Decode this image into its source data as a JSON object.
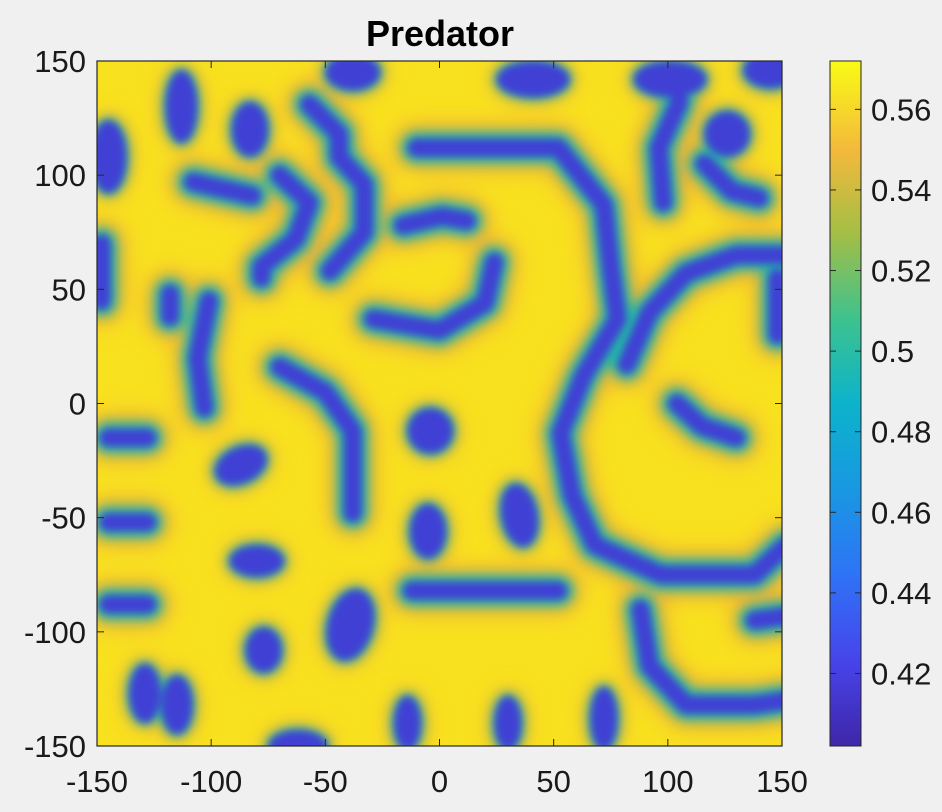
{
  "chart_data": {
    "type": "heatmap",
    "title": "Predator",
    "xlabel": "",
    "ylabel": "",
    "xlim": [
      -150,
      150
    ],
    "ylim": [
      -150,
      150
    ],
    "x_ticks": [
      "-150",
      "-100",
      "-50",
      "0",
      "50",
      "100",
      "150"
    ],
    "y_ticks": [
      "150",
      "100",
      "50",
      "0",
      "-50",
      "-100",
      "-150"
    ],
    "colorbar": {
      "range": [
        0.402,
        0.572
      ],
      "ticks": [
        "0.56",
        "0.54",
        "0.52",
        "0.5",
        "0.48",
        "0.46",
        "0.44",
        "0.42"
      ],
      "colormap": "parula"
    },
    "grid": false,
    "pattern": "Turing labyrinth: yellow background (~0.565) with blue spots and stripes (~0.41)",
    "colors": {
      "high": "#f7e620",
      "mid": "#20b3aa",
      "low": "#3f37c8",
      "background": "#f0f0f0"
    }
  }
}
